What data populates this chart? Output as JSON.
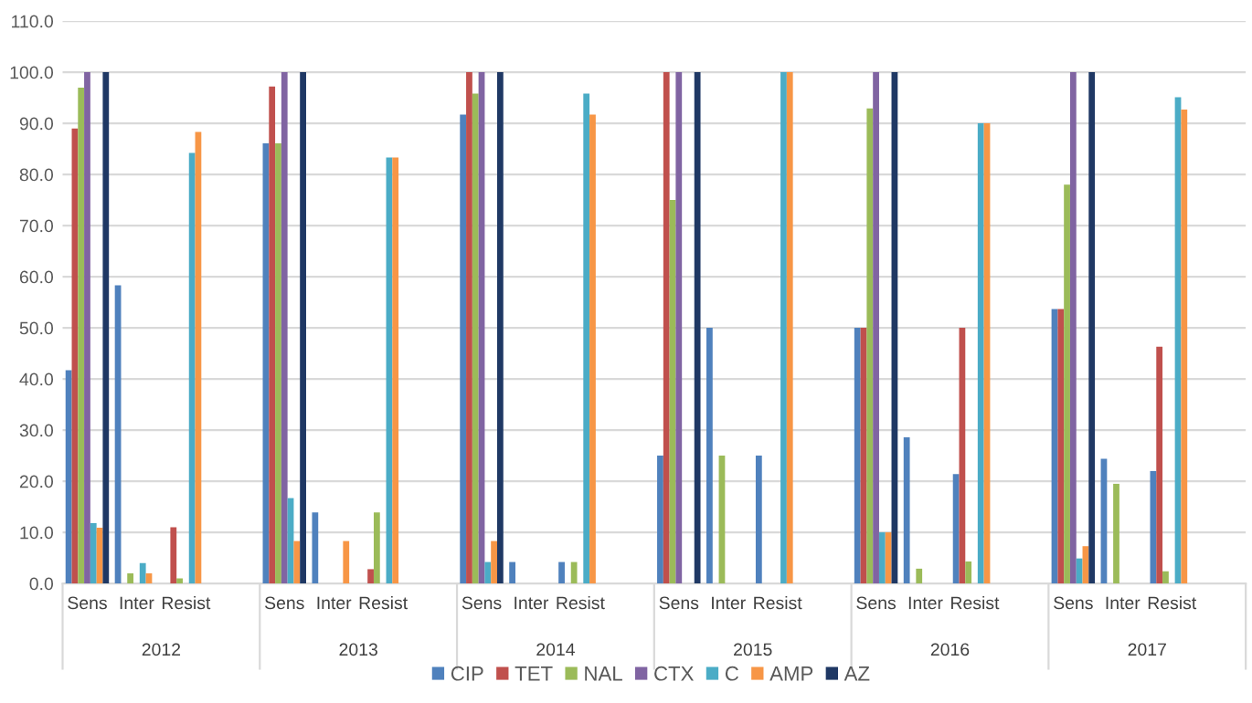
{
  "chart_data": {
    "type": "bar",
    "categories": [
      "Sens",
      "Inter",
      "Resist",
      null,
      "Sens",
      "Inter",
      "Resist",
      null,
      "Sens",
      "Inter",
      "Resist",
      null,
      "Sens",
      "Inter",
      "Resist",
      null,
      "Sens",
      "Inter",
      "Resist",
      null,
      "Sens",
      "Inter",
      "Resist",
      null
    ],
    "annotations": [
      "2012",
      "2013",
      "2014",
      "2015",
      "2016",
      "2017"
    ],
    "series": [
      {
        "name": "CIP",
        "color": "#4f81bd",
        "values": [
          41.7,
          58.3,
          0,
          null,
          86.1,
          13.9,
          0,
          null,
          91.7,
          4.2,
          4.2,
          null,
          25,
          50,
          25,
          null,
          50,
          28.6,
          21.4,
          null,
          53.7,
          24.4,
          22,
          null
        ]
      },
      {
        "name": "TET",
        "color": "#c0504d",
        "values": [
          89,
          0,
          11,
          null,
          97.2,
          0,
          2.8,
          null,
          100,
          0,
          0,
          null,
          100,
          0,
          0,
          null,
          50,
          0,
          50,
          null,
          53.7,
          0,
          46.3,
          null
        ]
      },
      {
        "name": "NAL",
        "color": "#9bbb59",
        "values": [
          97,
          2,
          1,
          null,
          86.1,
          0,
          13.9,
          null,
          95.8,
          0,
          4.2,
          null,
          75,
          25,
          0,
          null,
          92.9,
          2.9,
          4.3,
          null,
          78,
          19.5,
          2.4,
          null
        ]
      },
      {
        "name": "CTX",
        "color": "#8064a2",
        "values": [
          100,
          0,
          0,
          null,
          100,
          0,
          0,
          null,
          100,
          0,
          0,
          null,
          100,
          0,
          0,
          null,
          100,
          0,
          0,
          null,
          100,
          0,
          0,
          null
        ]
      },
      {
        "name": "C",
        "color": "#4bacc6",
        "values": [
          11.8,
          4,
          84.2,
          null,
          16.7,
          0,
          83.3,
          null,
          4.2,
          0,
          95.8,
          null,
          0,
          0,
          100,
          null,
          10,
          0,
          90,
          null,
          4.9,
          0,
          95.1,
          null
        ]
      },
      {
        "name": "AMP",
        "color": "#f79646",
        "values": [
          10.9,
          2,
          88.3,
          null,
          8.3,
          8.3,
          83.3,
          null,
          8.3,
          0,
          91.7,
          null,
          0,
          0,
          100,
          null,
          10,
          0,
          90,
          null,
          7.3,
          0,
          92.7,
          null
        ]
      },
      {
        "name": "AZ",
        "color": "#1f3864",
        "values": [
          100,
          0,
          0,
          null,
          100,
          0,
          0,
          null,
          100,
          0,
          0,
          null,
          100,
          0,
          0,
          null,
          100,
          0,
          0,
          null,
          100,
          0,
          0,
          null
        ]
      }
    ],
    "ylim": [
      0,
      110
    ],
    "yticks": [
      {
        "value": 0,
        "label": "0.0"
      },
      {
        "value": 10,
        "label": "10.0"
      },
      {
        "value": 20,
        "label": "20.0"
      },
      {
        "value": 30,
        "label": "30.0"
      },
      {
        "value": 40,
        "label": "40.0"
      },
      {
        "value": 50,
        "label": "50.0"
      },
      {
        "value": 60,
        "label": "60.0"
      },
      {
        "value": 70,
        "label": "70.0"
      },
      {
        "value": 80,
        "label": "80.0"
      },
      {
        "value": 90,
        "label": "90.0"
      },
      {
        "value": 100,
        "label": "100.0"
      },
      {
        "value": 110,
        "label": "110.0"
      }
    ],
    "grid": "y",
    "legend": "bottom"
  }
}
